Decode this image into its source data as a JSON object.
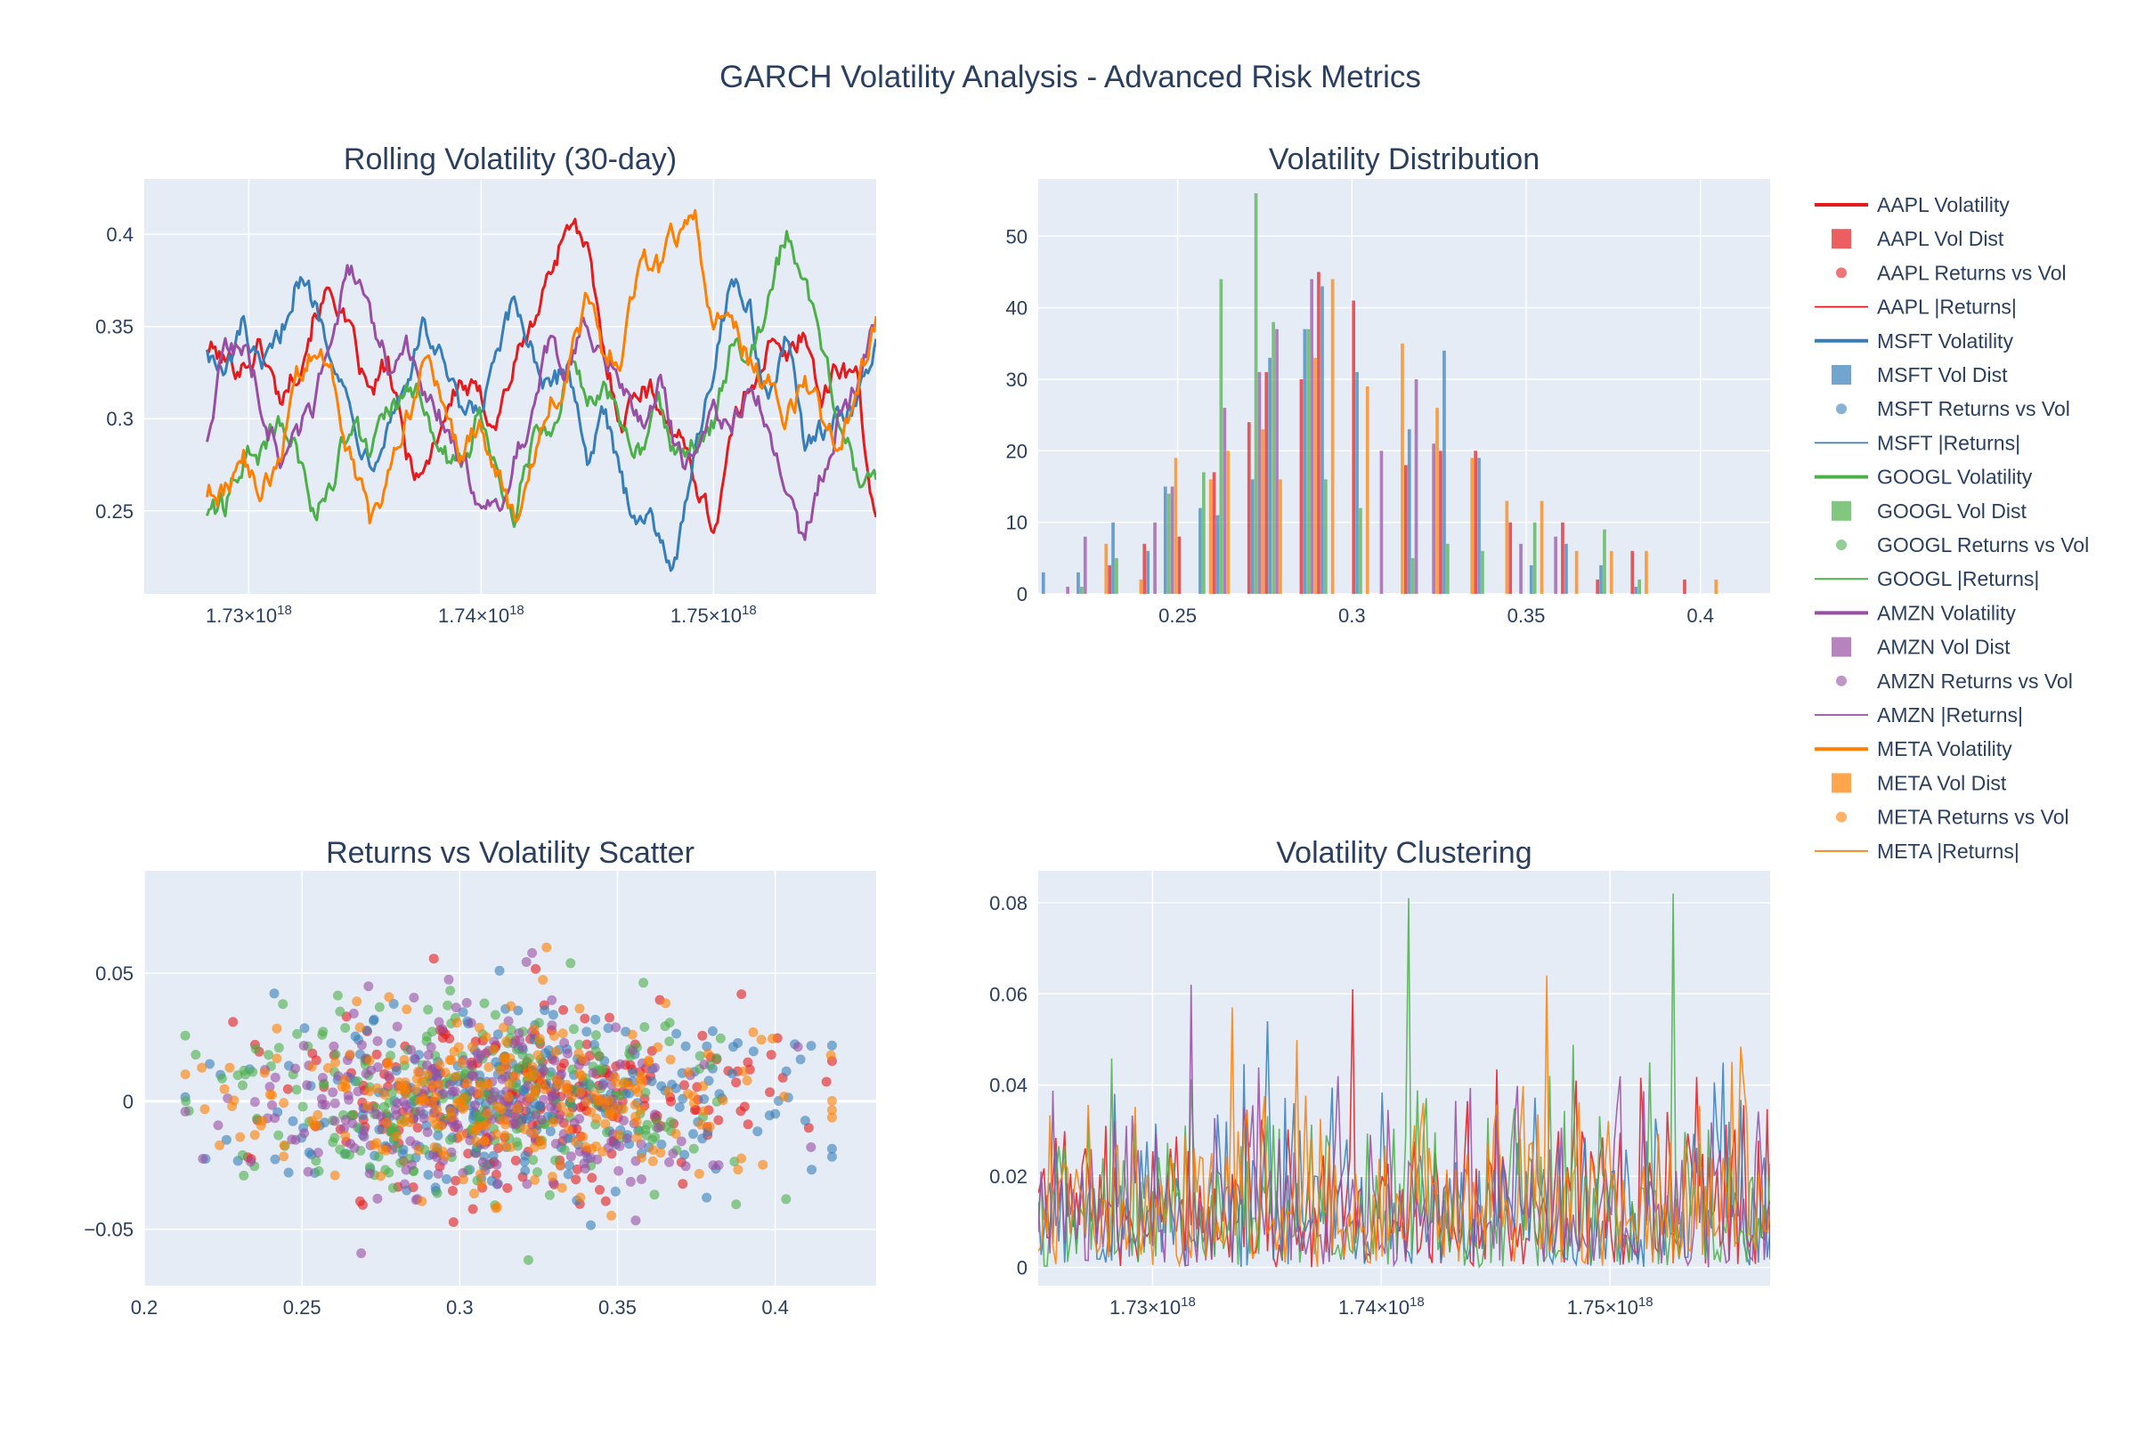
{
  "page_title": "GARCH Volatility Analysis - Advanced Risk Metrics",
  "colors": {
    "AAPL": "#e41a1c",
    "MSFT": "#377eb8",
    "GOOGL": "#4daf4a",
    "AMZN": "#984ea3",
    "META": "#ff7f00",
    "plot_bg": "#e5ecf6",
    "grid": "#ffffff",
    "text": "#2a3f5f"
  },
  "legend": {
    "placement": "right",
    "items": [
      {
        "label": "AAPL Volatility",
        "ticker": "AAPL",
        "kind": "line-thick"
      },
      {
        "label": "AAPL Vol Dist",
        "ticker": "AAPL",
        "kind": "square"
      },
      {
        "label": "AAPL Returns vs Vol",
        "ticker": "AAPL",
        "kind": "dot"
      },
      {
        "label": "AAPL |Returns|",
        "ticker": "AAPL",
        "kind": "line-thin"
      },
      {
        "label": "MSFT Volatility",
        "ticker": "MSFT",
        "kind": "line-thick"
      },
      {
        "label": "MSFT Vol Dist",
        "ticker": "MSFT",
        "kind": "square"
      },
      {
        "label": "MSFT Returns vs Vol",
        "ticker": "MSFT",
        "kind": "dot"
      },
      {
        "label": "MSFT |Returns|",
        "ticker": "MSFT",
        "kind": "line-thin"
      },
      {
        "label": "GOOGL Volatility",
        "ticker": "GOOGL",
        "kind": "line-thick"
      },
      {
        "label": "GOOGL Vol Dist",
        "ticker": "GOOGL",
        "kind": "square"
      },
      {
        "label": "GOOGL Returns vs Vol",
        "ticker": "GOOGL",
        "kind": "dot"
      },
      {
        "label": "GOOGL |Returns|",
        "ticker": "GOOGL",
        "kind": "line-thin"
      },
      {
        "label": "AMZN Volatility",
        "ticker": "AMZN",
        "kind": "line-thick"
      },
      {
        "label": "AMZN Vol Dist",
        "ticker": "AMZN",
        "kind": "square"
      },
      {
        "label": "AMZN Returns vs Vol",
        "ticker": "AMZN",
        "kind": "dot"
      },
      {
        "label": "AMZN |Returns|",
        "ticker": "AMZN",
        "kind": "line-thin"
      },
      {
        "label": "META Volatility",
        "ticker": "META",
        "kind": "line-thick"
      },
      {
        "label": "META Vol Dist",
        "ticker": "META",
        "kind": "square"
      },
      {
        "label": "META Returns vs Vol",
        "ticker": "META",
        "kind": "dot"
      },
      {
        "label": "META |Returns|",
        "ticker": "META",
        "kind": "line-thin"
      }
    ]
  },
  "chart_data": [
    {
      "id": "rolling",
      "type": "line",
      "title": "Rolling Volatility (30-day)",
      "xlabel": "",
      "ylabel": "",
      "xlim": [
        1.7255e+18,
        1.757e+18
      ],
      "ylim": [
        0.205,
        0.43
      ],
      "xticks": [
        {
          "v": 1.73e+18,
          "base": "1.73×10",
          "exp": "18"
        },
        {
          "v": 1.74e+18,
          "base": "1.74×10",
          "exp": "18"
        },
        {
          "v": 1.75e+18,
          "base": "1.75×10",
          "exp": "18"
        }
      ],
      "yticks": [
        {
          "v": 0.25,
          "label": "0.25"
        },
        {
          "v": 0.3,
          "label": "0.3"
        },
        {
          "v": 0.35,
          "label": "0.35"
        },
        {
          "v": 0.4,
          "label": "0.4"
        }
      ],
      "grid": true,
      "x_start": 1.7282e+18,
      "x_end": 1.757e+18,
      "series": [
        {
          "name": "AAPL Volatility",
          "ticker": "AAPL",
          "keyframes": [
            0.34,
            0.33,
            0.33,
            0.34,
            0.31,
            0.33,
            0.36,
            0.37,
            0.34,
            0.31,
            0.33,
            0.28,
            0.27,
            0.3,
            0.32,
            0.31,
            0.3,
            0.33,
            0.35,
            0.38,
            0.41,
            0.39,
            0.33,
            0.3,
            0.32,
            0.31,
            0.29,
            0.27,
            0.24,
            0.29,
            0.32,
            0.34,
            0.33,
            0.35,
            0.31,
            0.33,
            0.32,
            0.24
          ]
        },
        {
          "name": "MSFT Volatility",
          "ticker": "MSFT",
          "keyframes": [
            0.34,
            0.32,
            0.35,
            0.32,
            0.34,
            0.38,
            0.36,
            0.34,
            0.3,
            0.28,
            0.3,
            0.32,
            0.35,
            0.33,
            0.3,
            0.3,
            0.33,
            0.36,
            0.34,
            0.31,
            0.33,
            0.28,
            0.3,
            0.26,
            0.25,
            0.24,
            0.22,
            0.29,
            0.33,
            0.38,
            0.36,
            0.31,
            0.34,
            0.29,
            0.29,
            0.3,
            0.31,
            0.34
          ]
        },
        {
          "name": "GOOGL Volatility",
          "ticker": "GOOGL",
          "keyframes": [
            0.25,
            0.25,
            0.28,
            0.28,
            0.3,
            0.28,
            0.25,
            0.27,
            0.3,
            0.28,
            0.3,
            0.31,
            0.31,
            0.28,
            0.27,
            0.3,
            0.28,
            0.25,
            0.29,
            0.3,
            0.33,
            0.31,
            0.32,
            0.29,
            0.28,
            0.31,
            0.28,
            0.29,
            0.3,
            0.34,
            0.33,
            0.36,
            0.4,
            0.38,
            0.34,
            0.3,
            0.27,
            0.26
          ]
        },
        {
          "name": "AMZN Volatility",
          "ticker": "AMZN",
          "keyframes": [
            0.29,
            0.34,
            0.34,
            0.31,
            0.28,
            0.29,
            0.31,
            0.36,
            0.38,
            0.35,
            0.33,
            0.34,
            0.31,
            0.3,
            0.28,
            0.26,
            0.25,
            0.28,
            0.3,
            0.34,
            0.33,
            0.35,
            0.34,
            0.32,
            0.3,
            0.32,
            0.28,
            0.27,
            0.3,
            0.29,
            0.32,
            0.3,
            0.27,
            0.23,
            0.27,
            0.3,
            0.32,
            0.36
          ]
        },
        {
          "name": "META Volatility",
          "ticker": "META",
          "keyframes": [
            0.26,
            0.26,
            0.28,
            0.26,
            0.28,
            0.32,
            0.34,
            0.32,
            0.28,
            0.24,
            0.27,
            0.3,
            0.33,
            0.31,
            0.28,
            0.3,
            0.27,
            0.24,
            0.28,
            0.31,
            0.33,
            0.36,
            0.33,
            0.34,
            0.39,
            0.38,
            0.4,
            0.41,
            0.35,
            0.36,
            0.33,
            0.32,
            0.3,
            0.32,
            0.3,
            0.28,
            0.32,
            0.35
          ]
        }
      ]
    },
    {
      "id": "dist",
      "type": "bar",
      "title": "Volatility Distribution",
      "xlabel": "",
      "ylabel": "",
      "xlim": [
        0.21,
        0.42
      ],
      "ylim": [
        0,
        58
      ],
      "xticks": [
        {
          "v": 0.25,
          "label": "0.25"
        },
        {
          "v": 0.3,
          "label": "0.3"
        },
        {
          "v": 0.35,
          "label": "0.35"
        },
        {
          "v": 0.4,
          "label": "0.4"
        }
      ],
      "yticks": [
        {
          "v": 0,
          "label": "0"
        },
        {
          "v": 10,
          "label": "10"
        },
        {
          "v": 20,
          "label": "20"
        },
        {
          "v": 30,
          "label": "30"
        },
        {
          "v": 40,
          "label": "40"
        },
        {
          "v": 50,
          "label": "50"
        }
      ],
      "grid": true,
      "bin_start": 0.21,
      "bin_width": 0.005,
      "series": [
        {
          "name": "AAPL Vol Dist",
          "ticker": "AAPL",
          "counts": [
            0,
            0,
            0,
            0,
            4,
            0,
            7,
            0,
            8,
            0,
            17,
            0,
            24,
            31,
            0,
            30,
            45,
            0,
            41,
            0,
            0,
            18,
            0,
            20,
            0,
            20,
            0,
            10,
            0,
            0,
            10,
            0,
            2,
            0,
            6,
            0,
            0,
            2,
            0
          ]
        },
        {
          "name": "MSFT Vol Dist",
          "ticker": "MSFT",
          "counts": [
            3,
            0,
            3,
            0,
            10,
            0,
            6,
            15,
            0,
            12,
            11,
            0,
            16,
            33,
            0,
            37,
            43,
            0,
            31,
            0,
            0,
            23,
            0,
            34,
            0,
            19,
            0,
            0,
            4,
            0,
            7,
            0,
            4,
            0,
            1,
            0,
            0,
            0,
            0
          ]
        },
        {
          "name": "GOOGL Vol Dist",
          "ticker": "GOOGL",
          "counts": [
            0,
            0,
            1,
            0,
            5,
            0,
            0,
            14,
            0,
            17,
            44,
            0,
            56,
            38,
            0,
            37,
            16,
            0,
            12,
            0,
            0,
            5,
            0,
            7,
            0,
            6,
            0,
            0,
            10,
            0,
            0,
            0,
            9,
            0,
            2,
            0,
            0,
            0,
            0
          ]
        },
        {
          "name": "AMZN Vol Dist",
          "ticker": "AMZN",
          "counts": [
            0,
            1,
            8,
            0,
            0,
            0,
            10,
            15,
            0,
            0,
            26,
            0,
            31,
            37,
            0,
            44,
            0,
            0,
            0,
            20,
            0,
            30,
            21,
            0,
            0,
            0,
            0,
            7,
            0,
            8,
            0,
            0,
            0,
            0,
            0,
            0,
            0,
            0,
            0
          ]
        },
        {
          "name": "META Vol Dist",
          "ticker": "META",
          "counts": [
            0,
            0,
            0,
            7,
            0,
            2,
            0,
            19,
            0,
            16,
            20,
            0,
            23,
            16,
            0,
            33,
            44,
            0,
            29,
            0,
            35,
            0,
            26,
            0,
            19,
            0,
            13,
            0,
            13,
            0,
            6,
            0,
            6,
            0,
            6,
            0,
            0,
            0,
            2
          ]
        }
      ]
    },
    {
      "id": "scatter",
      "type": "scatter",
      "title": "Returns vs Volatility Scatter",
      "xlabel": "",
      "ylabel": "",
      "xlim": [
        0.2,
        0.432
      ],
      "ylim": [
        -0.072,
        0.09
      ],
      "xticks": [
        {
          "v": 0.2,
          "label": "0.2"
        },
        {
          "v": 0.25,
          "label": "0.25"
        },
        {
          "v": 0.3,
          "label": "0.3"
        },
        {
          "v": 0.35,
          "label": "0.35"
        },
        {
          "v": 0.4,
          "label": "0.4"
        }
      ],
      "yticks": [
        {
          "v": -0.05,
          "label": "−0.05"
        },
        {
          "v": 0,
          "label": "0"
        },
        {
          "v": 0.05,
          "label": "0.05"
        }
      ],
      "grid": true,
      "points_per_series": 260,
      "series": [
        {
          "name": "AAPL Returns vs Vol",
          "ticker": "AAPL",
          "x_center": 0.322,
          "x_spread": 0.038,
          "y_spread": 0.018
        },
        {
          "name": "MSFT Returns vs Vol",
          "ticker": "MSFT",
          "x_center": 0.318,
          "x_spread": 0.042,
          "y_spread": 0.018
        },
        {
          "name": "GOOGL Returns vs Vol",
          "ticker": "GOOGL",
          "x_center": 0.305,
          "x_spread": 0.04,
          "y_spread": 0.019
        },
        {
          "name": "AMZN Returns vs Vol",
          "ticker": "AMZN",
          "x_center": 0.303,
          "x_spread": 0.036,
          "y_spread": 0.018
        },
        {
          "name": "META Returns vs Vol",
          "ticker": "META",
          "x_center": 0.315,
          "x_spread": 0.042,
          "y_spread": 0.018
        }
      ]
    },
    {
      "id": "clustering",
      "type": "line",
      "title": "Volatility Clustering",
      "xlabel": "",
      "ylabel": "",
      "xlim": [
        1.725e+18,
        1.757e+18
      ],
      "ylim": [
        -0.004,
        0.087
      ],
      "xticks": [
        {
          "v": 1.73e+18,
          "base": "1.73×10",
          "exp": "18"
        },
        {
          "v": 1.74e+18,
          "base": "1.74×10",
          "exp": "18"
        },
        {
          "v": 1.75e+18,
          "base": "1.75×10",
          "exp": "18"
        }
      ],
      "yticks": [
        {
          "v": 0,
          "label": "0"
        },
        {
          "v": 0.02,
          "label": "0.02"
        },
        {
          "v": 0.04,
          "label": "0.04"
        },
        {
          "v": 0.06,
          "label": "0.06"
        },
        {
          "v": 0.08,
          "label": "0.08"
        }
      ],
      "grid": true,
      "points_per_series": 250,
      "series": [
        {
          "name": "AAPL |Returns|",
          "ticker": "AAPL",
          "mean": 0.015,
          "spikes": [
            [
              1.7388e+18,
              0.061
            ]
          ]
        },
        {
          "name": "MSFT |Returns|",
          "ticker": "MSFT",
          "mean": 0.015,
          "spikes": [
            [
              1.735e+18,
              0.054
            ]
          ]
        },
        {
          "name": "GOOGL |Returns|",
          "ticker": "GOOGL",
          "mean": 0.015,
          "spikes": [
            [
              1.7412e+18,
              0.081
            ],
            [
              1.7528e+18,
              0.082
            ]
          ]
        },
        {
          "name": "AMZN |Returns|",
          "ticker": "AMZN",
          "mean": 0.015,
          "spikes": [
            [
              1.7317e+18,
              0.062
            ]
          ]
        },
        {
          "name": "META |Returns|",
          "ticker": "META",
          "mean": 0.015,
          "spikes": [
            [
              1.7472e+18,
              0.064
            ],
            [
              1.7335e+18,
              0.057
            ]
          ]
        }
      ]
    }
  ]
}
